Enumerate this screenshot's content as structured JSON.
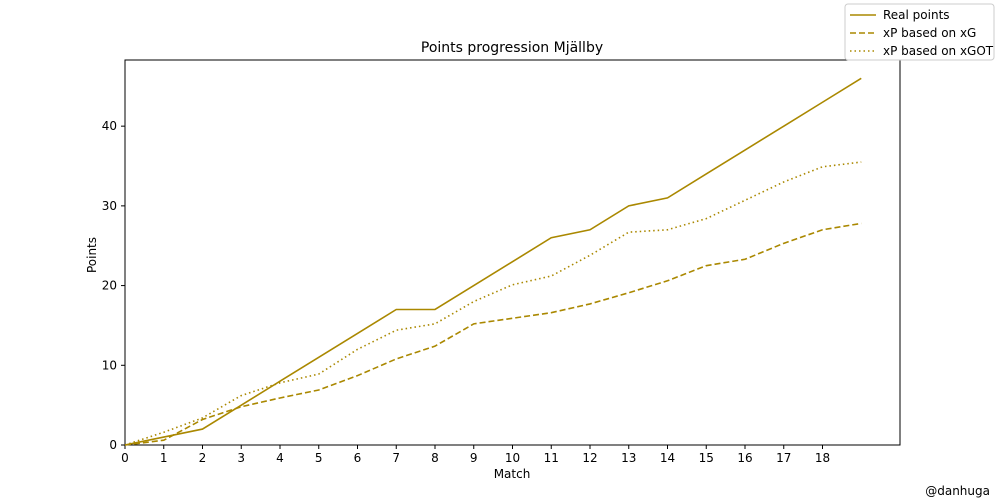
{
  "chart_data": {
    "type": "line",
    "title": "Points progression Mjällby",
    "xlabel": "Match",
    "ylabel": "Points",
    "xlim": [
      0,
      20
    ],
    "ylim": [
      0,
      48.3
    ],
    "xticks": [
      0,
      1,
      2,
      3,
      4,
      5,
      6,
      7,
      8,
      9,
      10,
      11,
      12,
      13,
      14,
      15,
      16,
      17,
      18
    ],
    "yticks": [
      0,
      10,
      20,
      30,
      40
    ],
    "legend_position": "top-right",
    "color": "#aa8800",
    "x": [
      0,
      1,
      2,
      3,
      4,
      5,
      6,
      7,
      8,
      9,
      10,
      11,
      12,
      13,
      14,
      15,
      16,
      17,
      18,
      19
    ],
    "series": [
      {
        "name": "Real points",
        "style": "solid",
        "values": [
          0,
          1,
          2,
          5,
          8,
          11,
          14,
          17,
          17,
          20,
          23,
          26,
          27,
          30,
          31,
          34,
          37,
          40,
          43,
          46
        ]
      },
      {
        "name": "xP based on xG",
        "style": "dashed",
        "values": [
          0,
          0.6,
          3.2,
          4.8,
          5.9,
          6.9,
          8.7,
          10.8,
          12.4,
          15.2,
          15.9,
          16.6,
          17.7,
          19.1,
          20.6,
          22.5,
          23.3,
          25.3,
          27.0,
          27.8
        ]
      },
      {
        "name": "xP based on xGOT",
        "style": "dotted",
        "values": [
          0,
          1.6,
          3.4,
          6.2,
          7.8,
          8.9,
          12.0,
          14.4,
          15.2,
          18.0,
          20.1,
          21.2,
          23.8,
          26.7,
          27.0,
          28.4,
          30.7,
          33.0,
          34.9,
          35.5
        ]
      }
    ]
  },
  "watermark": "@danhuga"
}
